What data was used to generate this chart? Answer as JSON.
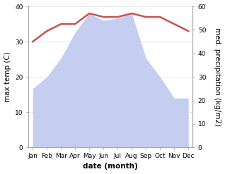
{
  "months": [
    "Jan",
    "Feb",
    "Mar",
    "Apr",
    "May",
    "Jun",
    "Jul",
    "Aug",
    "Sep",
    "Oct",
    "Nov",
    "Dec"
  ],
  "temperature": [
    30,
    33,
    35,
    35,
    38,
    37,
    37,
    38,
    37,
    37,
    35,
    33
  ],
  "precipitation": [
    25,
    30,
    38,
    49,
    57,
    54,
    55,
    57,
    38,
    30,
    21,
    21
  ],
  "temp_color": "#c8524a",
  "precip_color": "#c5cef0",
  "left_ylim": [
    0,
    40
  ],
  "right_ylim": [
    0,
    60
  ],
  "left_yticks": [
    0,
    10,
    20,
    30,
    40
  ],
  "right_yticks": [
    0,
    10,
    20,
    30,
    40,
    50,
    60
  ],
  "xlabel": "date (month)",
  "ylabel_left": "max temp (C)",
  "ylabel_right": "med. precipitation (kg/m2)",
  "axis_label_fontsize": 7.5,
  "tick_fontsize": 6.5,
  "background_color": "#ffffff",
  "spine_color": "#aaaaaa",
  "grid_color": "#dddddd"
}
